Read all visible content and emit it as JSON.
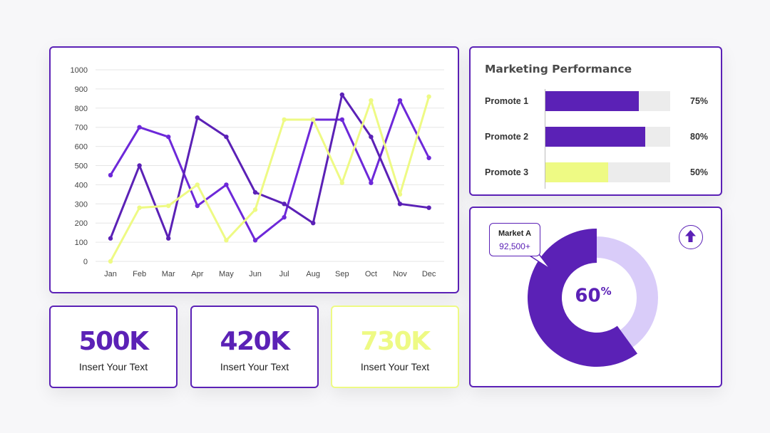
{
  "chart_data": [
    {
      "type": "line",
      "categories": [
        "Jan",
        "Feb",
        "Mar",
        "Apr",
        "May",
        "Jun",
        "Jul",
        "Aug",
        "Sep",
        "Oct",
        "Nov",
        "Dec"
      ],
      "ylim": [
        0,
        1000
      ],
      "yticks": [
        "0",
        "100",
        "200",
        "300",
        "400",
        "500",
        "600",
        "700",
        "800",
        "900",
        "1000"
      ],
      "grid": true,
      "series": [
        {
          "color": "#6d28d9",
          "values": [
            450,
            700,
            650,
            290,
            400,
            110,
            230,
            740,
            740,
            410,
            840,
            540
          ]
        },
        {
          "color": "#5b21b6",
          "values": [
            120,
            500,
            120,
            750,
            650,
            360,
            300,
            200,
            870,
            650,
            300,
            280
          ]
        },
        {
          "color": "#eefa84",
          "values": [
            0,
            280,
            290,
            400,
            110,
            270,
            740,
            740,
            410,
            840,
            350,
            860
          ]
        }
      ]
    },
    {
      "type": "bar",
      "title": "Marketing Performance",
      "categories": [
        "Promote 1",
        "Promote 2",
        "Promote 3"
      ],
      "values": [
        75,
        80,
        50
      ],
      "value_labels": [
        "75%",
        "80%",
        "50%"
      ],
      "colors": [
        "#5b21b6",
        "#5b21b6",
        "#eefa84"
      ],
      "ylim": [
        0,
        100
      ]
    },
    {
      "type": "pie",
      "style": "donut",
      "values": [
        60,
        40
      ],
      "center_value": "60",
      "center_unit": "%",
      "colors": [
        "#5b21b6",
        "#d9ccf9"
      ],
      "callout_name": "Market A",
      "callout_value": "92,500+"
    }
  ],
  "stats": [
    {
      "value": "500K",
      "label": "Insert Your Text",
      "color": "#5b21b6"
    },
    {
      "value": "420K",
      "label": "Insert Your Text",
      "color": "#5b21b6"
    },
    {
      "value": "730K",
      "label": "Insert Your Text",
      "color": "#eefa84"
    }
  ],
  "icons": {
    "up": "arrow-up-icon"
  }
}
